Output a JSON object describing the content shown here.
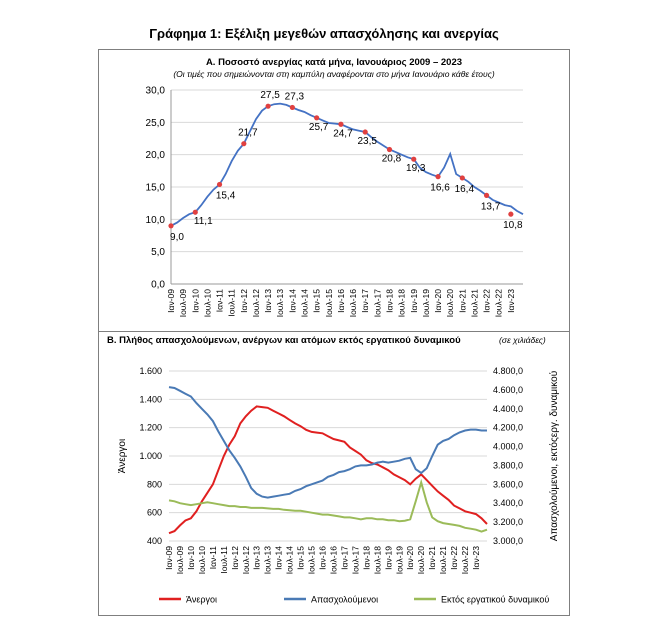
{
  "figure": {
    "title": "Γράφημα 1: Εξέλιξη μεγεθών απασχόλησης και ανεργίας"
  },
  "chart_data": [
    {
      "type": "line",
      "title": "Α. Ποσοστό ανεργίας κατά μήνα, Ιανουάριος 2009 – 2023",
      "subtitle": "(Οι τιμές που σημειώνονται στη καμπύλη αναφέρονται στο μήνα Ιανουάριο κάθε έτους)",
      "xlabel": "",
      "ylabel": "",
      "ylim": [
        0,
        30
      ],
      "yticks": [
        "0,0",
        "5,0",
        "10,0",
        "15,0",
        "20,0",
        "25,0",
        "30,0"
      ],
      "yticks_values": [
        0,
        5,
        10,
        15,
        20,
        25,
        30
      ],
      "grid": true,
      "x_tick_labels": [
        "Ιαν-09",
        "Ιουλ-09",
        "Ιαν-10",
        "Ιουλ-10",
        "Ιαν-11",
        "Ιουλ-11",
        "Ιαν-12",
        "Ιουλ-12",
        "Ιαν-13",
        "Ιουλ-13",
        "Ιαν-14",
        "Ιουλ-14",
        "Ιαν-15",
        "Ιουλ-15",
        "Ιαν-16",
        "Ιουλ-16",
        "Ιαν-17",
        "Ιουλ-17",
        "Ιαν-18",
        "Ιουλ-18",
        "Ιαν-19",
        "Ιουλ-19",
        "Ιαν-20",
        "Ιουλ-20",
        "Ιαν-21",
        "Ιουλ-21",
        "Ιαν-22",
        "Ιουλ-22",
        "Ιαν-23"
      ],
      "series": [
        {
          "values": [
            9.0,
            9.5,
            10.2,
            10.8,
            11.1,
            12.2,
            13.5,
            14.6,
            15.4,
            17.0,
            19.0,
            20.6,
            21.7,
            23.6,
            25.5,
            26.8,
            27.5,
            27.8,
            27.9,
            27.7,
            27.3,
            26.9,
            26.6,
            26.1,
            25.7,
            25.3,
            24.9,
            24.8,
            24.7,
            24.3,
            23.9,
            23.7,
            23.5,
            22.7,
            22.0,
            21.4,
            20.8,
            20.4,
            20.0,
            19.6,
            19.3,
            18.0,
            17.3,
            16.9,
            16.6,
            18.0,
            20.1,
            17.0,
            16.4,
            15.8,
            15.0,
            14.4,
            13.7,
            13.0,
            12.6,
            12.2,
            12.0,
            11.3,
            10.8
          ],
          "color": "#4472c4"
        }
      ],
      "markers": {
        "color": "#e04040",
        "labels": [
          "9,0",
          "11,1",
          "15,4",
          "21,7",
          "27,5",
          "27,3",
          "25,7",
          "24,7",
          "23,5",
          "20,8",
          "19,3",
          "16,6",
          "16,4",
          "13,7",
          "10,8"
        ],
        "values": [
          9.0,
          11.1,
          15.4,
          21.7,
          27.5,
          27.3,
          25.7,
          24.7,
          23.5,
          20.8,
          19.3,
          16.6,
          16.4,
          13.7,
          10.8
        ]
      }
    },
    {
      "type": "line",
      "title": "Β. Πλήθος απασχολούμενων, ανέργων και ατόμων εκτός εργατικού δυναμικού",
      "unit_note": "(σε χιλιάδες)",
      "ylabel_left": "Άνεργοι",
      "ylabel_right": "Απασχολούμενοι, εκτόςεργ. δυναμικού",
      "ylim_left": [
        400,
        1600
      ],
      "yticks_left": [
        "400",
        "600",
        "800",
        "1.000",
        "1.200",
        "1.400",
        "1.600"
      ],
      "yticks_left_values": [
        400,
        600,
        800,
        1000,
        1200,
        1400,
        1600
      ],
      "ylim_right": [
        3000,
        4800
      ],
      "yticks_right": [
        "3.000,0",
        "3.200,0",
        "3.400,0",
        "3.600,0",
        "3.800,0",
        "4.000,0",
        "4.200,0",
        "4.400,0",
        "4.600,0",
        "4.800,0"
      ],
      "yticks_right_values": [
        3000,
        3200,
        3400,
        3600,
        3800,
        4000,
        4200,
        4400,
        4600,
        4800
      ],
      "grid": true,
      "legend_position": "bottom",
      "x_tick_labels": [
        "Ιαν-09",
        "Ιουλ-09",
        "Ιαν-10",
        "Ιουλ-10",
        "Ιαν-11",
        "Ιουλ-11",
        "Ιαν-12",
        "Ιουλ-12",
        "Ιαν-13",
        "Ιουλ-13",
        "Ιαν-14",
        "Ιουλ-14",
        "Ιαν-15",
        "Ιουλ-15",
        "Ιαν-16",
        "Ιουλ-16",
        "Ιαν-17",
        "Ιουλ-17",
        "Ιαν-18",
        "Ιουλ-18",
        "Ιαν-19",
        "Ιουλ-19",
        "Ιαν-20",
        "Ιουλ-20",
        "Ιαν-21",
        "Ιουλ-21",
        "Ιαν-22",
        "Ιουλ-22",
        "Ιαν-23"
      ],
      "series": [
        {
          "name": "Άνεργοι",
          "axis": "left",
          "color": "#e02020",
          "values": [
            455,
            470,
            510,
            545,
            560,
            610,
            680,
            740,
            800,
            900,
            1000,
            1080,
            1140,
            1230,
            1280,
            1320,
            1350,
            1345,
            1340,
            1320,
            1300,
            1280,
            1255,
            1230,
            1210,
            1185,
            1170,
            1165,
            1160,
            1140,
            1120,
            1110,
            1100,
            1060,
            1035,
            1010,
            970,
            950,
            940,
            920,
            900,
            870,
            850,
            830,
            800,
            840,
            870,
            830,
            790,
            750,
            720,
            690,
            650,
            630,
            610,
            600,
            590,
            560,
            520
          ]
        },
        {
          "name": "Απασχολούμενοι",
          "axis": "right",
          "color": "#4a7ab5",
          "values": [
            4630,
            4620,
            4590,
            4560,
            4530,
            4460,
            4400,
            4340,
            4270,
            4160,
            4060,
            3960,
            3880,
            3790,
            3680,
            3560,
            3500,
            3470,
            3460,
            3470,
            3480,
            3490,
            3500,
            3530,
            3550,
            3580,
            3600,
            3620,
            3640,
            3680,
            3700,
            3730,
            3740,
            3760,
            3790,
            3800,
            3800,
            3810,
            3830,
            3840,
            3830,
            3840,
            3850,
            3870,
            3880,
            3760,
            3720,
            3770,
            3900,
            4020,
            4060,
            4080,
            4120,
            4150,
            4170,
            4180,
            4180,
            4170,
            4170
          ]
        },
        {
          "name": "Εκτός εργατικού δυναμικού",
          "axis": "right",
          "color": "#9bbb59",
          "values": [
            3430,
            3420,
            3400,
            3390,
            3380,
            3390,
            3400,
            3410,
            3400,
            3390,
            3380,
            3370,
            3370,
            3360,
            3360,
            3350,
            3350,
            3350,
            3345,
            3340,
            3340,
            3330,
            3325,
            3320,
            3320,
            3310,
            3300,
            3290,
            3280,
            3280,
            3270,
            3260,
            3250,
            3250,
            3240,
            3230,
            3240,
            3240,
            3230,
            3230,
            3220,
            3220,
            3210,
            3215,
            3230,
            3420,
            3620,
            3410,
            3250,
            3210,
            3190,
            3180,
            3170,
            3160,
            3140,
            3130,
            3120,
            3100,
            3120
          ]
        }
      ]
    }
  ]
}
